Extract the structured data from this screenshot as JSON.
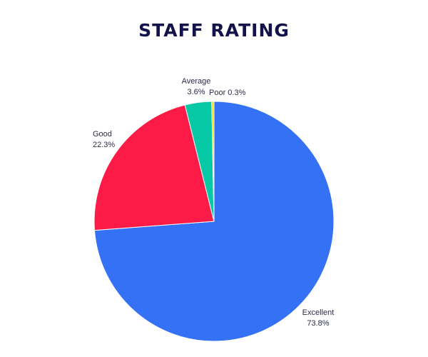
{
  "chart_data": {
    "type": "pie",
    "title": "STAFF RATING",
    "slices": [
      {
        "name": "Excellent",
        "label": "73.8%",
        "value": 73.8,
        "color": "#3471f5"
      },
      {
        "name": "Good",
        "label": "22.3%",
        "value": 22.3,
        "color": "#fc1b47"
      },
      {
        "name": "Average",
        "label": "3.6%",
        "value": 3.6,
        "color": "#05c9a5"
      },
      {
        "name": "Poor",
        "label": "0.3%",
        "value": 0.3,
        "color": "#f7d90a"
      }
    ]
  }
}
